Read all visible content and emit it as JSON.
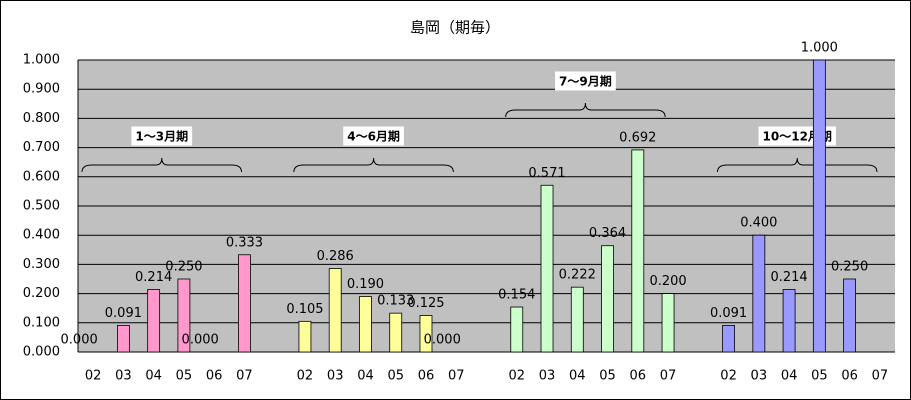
{
  "chart_data": {
    "type": "bar",
    "title": "島岡（期毎）",
    "categories": [
      "02",
      "03",
      "04",
      "05",
      "06",
      "07"
    ],
    "series": [
      {
        "name": "1～3月期",
        "color": "#ff99cc",
        "values": [
          0,
          0.091,
          0.214,
          0.25,
          0,
          0.333
        ],
        "value_labels": [
          "0.000",
          "0.091",
          "0.214",
          "0.250",
          "0.000",
          "0.333"
        ]
      },
      {
        "name": "4～6月期",
        "color": "#ffff99",
        "values": [
          0.105,
          0.286,
          0.19,
          0.133,
          0.125,
          0
        ],
        "value_labels": [
          "0.105",
          "0.286",
          "0.190",
          "0.133",
          "0.125",
          "0.000"
        ]
      },
      {
        "name": "7～9月期",
        "color": "#ccffcc",
        "values": [
          0.154,
          0.571,
          0.222,
          0.364,
          0.692,
          0.2
        ],
        "value_labels": [
          "0.154",
          "0.571",
          "0.222",
          "0.364",
          "0.692",
          "0.200"
        ]
      },
      {
        "name": "10～12月期",
        "color": "#9999ff",
        "values": [
          0.091,
          0.4,
          0.214,
          1,
          0.25,
          null
        ],
        "value_labels": [
          "0.091",
          "0.400",
          "0.214",
          "1.000",
          "0.250",
          null
        ]
      }
    ],
    "ylim": [
      0,
      1
    ],
    "yticks": [
      {
        "value": 0,
        "label": "0.000"
      },
      {
        "value": 0.1,
        "label": "0.100"
      },
      {
        "value": 0.2,
        "label": "0.200"
      },
      {
        "value": 0.3,
        "label": "0.300"
      },
      {
        "value": 0.4,
        "label": "0.400"
      },
      {
        "value": 0.5,
        "label": "0.500"
      },
      {
        "value": 0.6,
        "label": "0.600"
      },
      {
        "value": 0.7,
        "label": "0.700"
      },
      {
        "value": 0.8,
        "label": "0.800"
      },
      {
        "value": 0.9,
        "label": "0.900"
      },
      {
        "value": 1,
        "label": "1.000"
      }
    ],
    "grid": true
  }
}
